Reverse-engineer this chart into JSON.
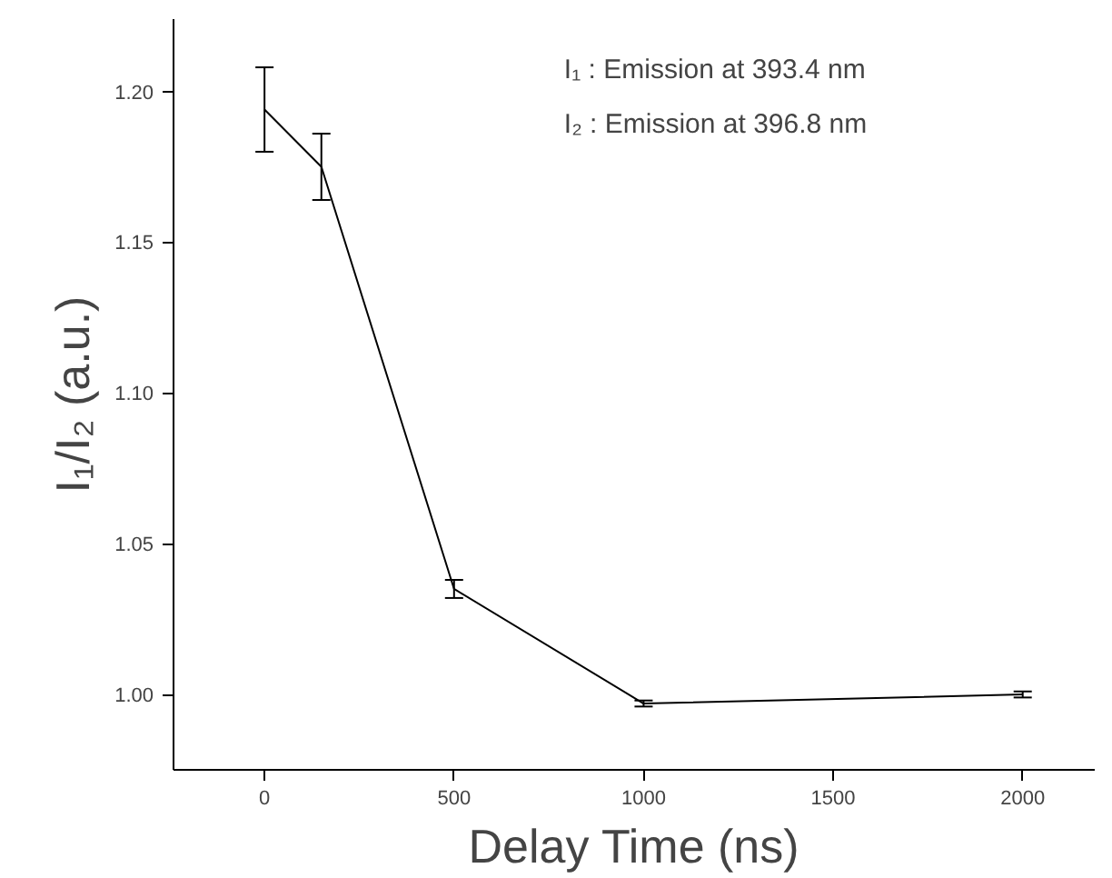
{
  "chart_data": {
    "type": "line",
    "xlabel": "Delay Time (ns)",
    "ylabel": "I₁/I₂ (a.u.)",
    "annotations": [
      "I₁ : Emission at 393.4 nm",
      "I₂ : Emission at 396.8 nm"
    ],
    "x": [
      0,
      150,
      500,
      1000,
      2000
    ],
    "series": [
      {
        "color": "#000000",
        "values": [
          1.194,
          1.175,
          1.035,
          0.997,
          1.0
        ],
        "errors": [
          0.014,
          0.011,
          0.003,
          0.001,
          0.001
        ]
      }
    ],
    "xlim": [
      -240,
      2190
    ],
    "xticks": [
      0,
      500,
      1000,
      1500,
      2000
    ],
    "ylim": [
      0.975,
      1.224
    ],
    "yticks": [
      {
        "value": 1.0,
        "label": "1.00"
      },
      1.05,
      {
        "value": 1.1,
        "label": "1.10"
      },
      1.15,
      {
        "value": 1.2,
        "label": "1.20"
      }
    ],
    "grid": false,
    "marker": "none",
    "line_style": "solid"
  }
}
